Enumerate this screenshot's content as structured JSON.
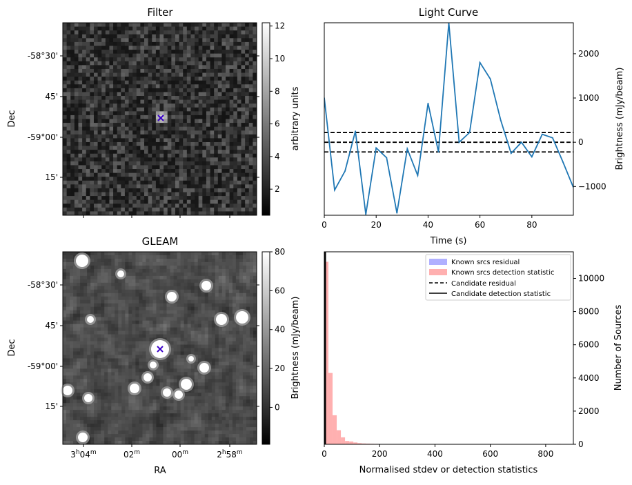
{
  "chart_data": [
    {
      "type": "heatmap",
      "title": "Filter",
      "ylabel": "Dec",
      "y_ticks": [
        "-58°30'",
        "45'",
        "-59°00'",
        "15'"
      ],
      "colorbar": {
        "label": "arbitrary units",
        "ticks": [
          2,
          4,
          6,
          8,
          10,
          12
        ],
        "range": [
          0.4,
          12.2
        ]
      },
      "marker": {
        "symbol": "x",
        "label": "candidate position"
      }
    },
    {
      "type": "line",
      "title": "Light Curve",
      "xlabel": "Time (s)",
      "ylabel": "Brightness (mJy/beam)",
      "xlim": [
        0,
        96
      ],
      "ylim": [
        -1650,
        2700
      ],
      "x_ticks": [
        0,
        20,
        40,
        60,
        80
      ],
      "y_ticks": [
        -1000,
        0,
        1000,
        2000
      ],
      "x": [
        0,
        4,
        8,
        12,
        16,
        20,
        24,
        28,
        32,
        36,
        40,
        44,
        48,
        52,
        56,
        60,
        64,
        68,
        72,
        76,
        80,
        84,
        88,
        92,
        96
      ],
      "values": [
        1000,
        -1080,
        -650,
        250,
        -1630,
        -130,
        -350,
        -1600,
        -150,
        -750,
        880,
        -220,
        2700,
        0,
        220,
        1800,
        1430,
        500,
        -250,
        0,
        -330,
        180,
        100,
        -450,
        -1020
      ],
      "hlines": [
        220,
        0,
        -220
      ]
    },
    {
      "type": "heatmap",
      "title": "GLEAM",
      "xlabel": "RA",
      "ylabel": "Dec",
      "x_ticks": [
        "3h04m",
        "02m",
        "00m",
        "2h58m"
      ],
      "y_ticks": [
        "-58°30'",
        "45'",
        "-59°00'",
        "15'"
      ],
      "colorbar": {
        "label": "Brightness (mJy/beam)",
        "ticks": [
          0,
          20,
          40,
          60,
          80
        ],
        "range": [
          -19,
          80
        ]
      },
      "marker": {
        "symbol": "x",
        "label": "candidate position"
      }
    },
    {
      "type": "bar",
      "title": "",
      "xlabel": "Normalised stdev or detection statistics",
      "ylabel": "Number of Sources",
      "xlim": [
        0,
        900
      ],
      "ylim": [
        0,
        11600
      ],
      "x_ticks": [
        0,
        200,
        400,
        600,
        800
      ],
      "y_ticks": [
        0,
        2000,
        4000,
        6000,
        8000,
        10000
      ],
      "bin_width": 15,
      "series": [
        {
          "name": "Known srcs detection statistic",
          "color": "#ffb0b0",
          "bins_left": [
            0,
            15,
            30,
            45,
            60,
            75,
            90,
            105,
            120,
            135,
            150,
            165,
            180,
            195,
            210,
            240,
            270,
            300,
            350,
            420,
            540,
            600,
            660,
            780,
            840
          ],
          "values": [
            11000,
            4300,
            1750,
            850,
            420,
            200,
            170,
            110,
            70,
            50,
            40,
            30,
            25,
            20,
            15,
            12,
            10,
            8,
            6,
            6,
            5,
            8,
            4,
            3,
            25
          ]
        },
        {
          "name": "Known srcs residual",
          "color": "#b0b0ff",
          "values": []
        },
        {
          "name": "Candidate residual",
          "value": 0
        },
        {
          "name": "Candidate detection statistic",
          "value": 0
        }
      ],
      "legend": {
        "placement": "top-right",
        "entries": [
          "Known srcs residual",
          "Known srcs detection statistic",
          "Candidate residual",
          "Candidate detection statistic"
        ]
      }
    }
  ]
}
